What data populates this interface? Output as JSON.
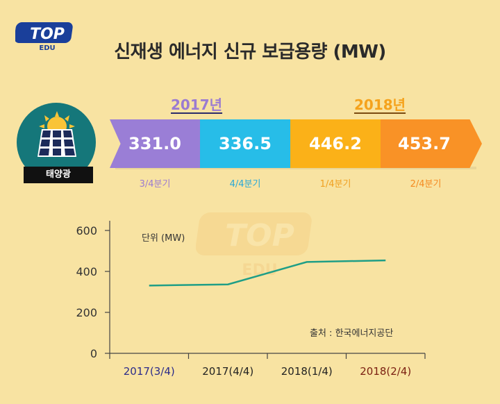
{
  "logo": {
    "top": "TOP",
    "bottom": "EDU"
  },
  "title": "신재생 에너지 신규 보급용량 (MW)",
  "years": {
    "y2017": "2017년",
    "y2018": "2018년"
  },
  "solar_label": "태양광",
  "segments": [
    {
      "value": "331.0",
      "quarter": "3/4분기",
      "color": "#9a7ed6"
    },
    {
      "value": "336.5",
      "quarter": "4/4분기",
      "color": "#27bde8"
    },
    {
      "value": "446.2",
      "quarter": "1/4분기",
      "color": "#fbb118"
    },
    {
      "value": "453.7",
      "quarter": "2/4분기",
      "color": "#f99226"
    }
  ],
  "chart_data": {
    "type": "line",
    "categories": [
      "2017(3/4)",
      "2017(4/4)",
      "2018(1/4)",
      "2018(2/4)"
    ],
    "category_colors": [
      "#2b2b8a",
      "#222222",
      "#222222",
      "#7a1e10"
    ],
    "series": [
      {
        "values": [
          331.0,
          336.5,
          446.2,
          453.7
        ],
        "color": "#1f9e86"
      }
    ],
    "ylim": [
      0,
      600
    ],
    "yticks": [
      0,
      200,
      400,
      600
    ],
    "unit_label": "단위 (MW)",
    "source": "출처 : 한국에너지공단",
    "grid": false
  }
}
